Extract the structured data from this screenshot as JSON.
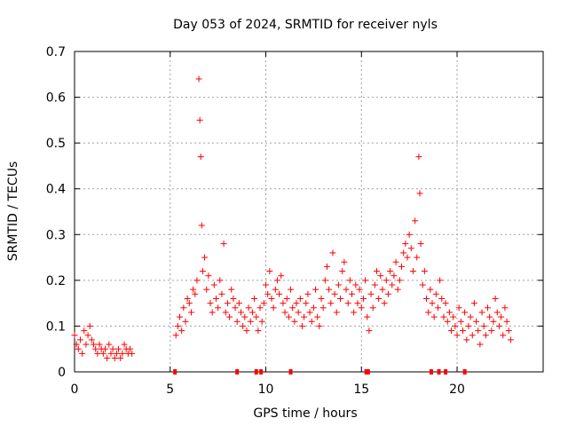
{
  "chart_data": {
    "type": "scatter",
    "title": "Day 053 of 2024, SRMTID for receiver nyls",
    "xlabel": "GPS time / hours",
    "ylabel": "SRMTID / TECUs",
    "xlim": [
      0,
      24.5
    ],
    "ylim": [
      0,
      0.7
    ],
    "xticks": [
      0,
      5,
      10,
      15,
      20
    ],
    "yticks": [
      0,
      0.1,
      0.2,
      0.3,
      0.4,
      0.5,
      0.6,
      0.7
    ],
    "xtick_labels": [
      "0",
      "5",
      "10",
      "15",
      "20"
    ],
    "ytick_labels": [
      "0",
      "0.1",
      "0.2",
      "0.3",
      "0.4",
      "0.5",
      "0.6",
      "0.7"
    ],
    "grid": true,
    "marker": "+",
    "color": "#ff0000",
    "series": [
      {
        "name": "SRMTID",
        "x": [
          0.0,
          0.1,
          0.2,
          0.3,
          0.4,
          0.5,
          0.6,
          0.7,
          0.8,
          0.9,
          1.0,
          1.1,
          1.2,
          1.3,
          1.4,
          1.5,
          1.6,
          1.7,
          1.8,
          1.9,
          2.0,
          2.1,
          2.2,
          2.3,
          2.4,
          2.5,
          2.6,
          2.7,
          2.8,
          2.9,
          3.0,
          5.3,
          5.4,
          5.5,
          5.6,
          5.7,
          5.8,
          5.9,
          6.0,
          6.1,
          6.2,
          6.3,
          6.4,
          6.5,
          6.55,
          6.6,
          6.65,
          6.7,
          6.8,
          6.9,
          7.0,
          7.1,
          7.2,
          7.3,
          7.4,
          7.5,
          7.6,
          7.7,
          7.8,
          7.9,
          8.0,
          8.1,
          8.2,
          8.3,
          8.4,
          8.5,
          8.6,
          8.7,
          8.8,
          8.9,
          9.0,
          9.1,
          9.2,
          9.3,
          9.4,
          9.5,
          9.6,
          9.7,
          9.8,
          9.9,
          10.0,
          10.1,
          10.2,
          10.3,
          10.4,
          10.5,
          10.6,
          10.7,
          10.8,
          10.9,
          11.0,
          11.1,
          11.2,
          11.3,
          11.4,
          11.5,
          11.6,
          11.7,
          11.8,
          11.9,
          12.0,
          12.1,
          12.2,
          12.3,
          12.4,
          12.5,
          12.6,
          12.7,
          12.8,
          12.9,
          13.0,
          13.1,
          13.2,
          13.3,
          13.4,
          13.5,
          13.6,
          13.7,
          13.8,
          13.9,
          14.0,
          14.1,
          14.2,
          14.3,
          14.4,
          14.5,
          14.6,
          14.7,
          14.8,
          14.9,
          15.0,
          15.1,
          15.2,
          15.3,
          15.4,
          15.5,
          15.6,
          15.7,
          15.8,
          15.9,
          16.0,
          16.1,
          16.2,
          16.3,
          16.4,
          16.5,
          16.6,
          16.7,
          16.8,
          16.9,
          17.0,
          17.1,
          17.2,
          17.3,
          17.4,
          17.5,
          17.6,
          17.7,
          17.8,
          17.9,
          18.0,
          18.05,
          18.1,
          18.2,
          18.3,
          18.4,
          18.5,
          18.6,
          18.7,
          18.8,
          18.9,
          19.0,
          19.1,
          19.2,
          19.3,
          19.4,
          19.5,
          19.6,
          19.7,
          19.8,
          19.9,
          20.0,
          20.1,
          20.2,
          20.3,
          20.4,
          20.5,
          20.6,
          20.7,
          20.8,
          20.9,
          21.0,
          21.1,
          21.2,
          21.3,
          21.4,
          21.5,
          21.6,
          21.7,
          21.8,
          21.9,
          22.0,
          22.1,
          22.2,
          22.3,
          22.4,
          22.5,
          22.6,
          22.7,
          22.8
        ],
        "y": [
          0.08,
          0.06,
          0.05,
          0.07,
          0.04,
          0.09,
          0.06,
          0.08,
          0.1,
          0.07,
          0.06,
          0.05,
          0.04,
          0.06,
          0.05,
          0.04,
          0.05,
          0.03,
          0.06,
          0.04,
          0.05,
          0.03,
          0.04,
          0.05,
          0.03,
          0.04,
          0.06,
          0.05,
          0.04,
          0.05,
          0.04,
          0.08,
          0.1,
          0.12,
          0.09,
          0.14,
          0.11,
          0.16,
          0.15,
          0.13,
          0.18,
          0.17,
          0.2,
          0.64,
          0.55,
          0.47,
          0.32,
          0.22,
          0.25,
          0.18,
          0.21,
          0.15,
          0.13,
          0.19,
          0.16,
          0.14,
          0.2,
          0.17,
          0.28,
          0.13,
          0.15,
          0.12,
          0.18,
          0.16,
          0.14,
          0.11,
          0.15,
          0.13,
          0.1,
          0.12,
          0.09,
          0.14,
          0.11,
          0.13,
          0.16,
          0.12,
          0.09,
          0.14,
          0.11,
          0.15,
          0.19,
          0.17,
          0.22,
          0.16,
          0.14,
          0.18,
          0.2,
          0.17,
          0.21,
          0.15,
          0.13,
          0.16,
          0.12,
          0.18,
          0.14,
          0.11,
          0.15,
          0.13,
          0.16,
          0.1,
          0.12,
          0.15,
          0.17,
          0.13,
          0.11,
          0.14,
          0.18,
          0.12,
          0.1,
          0.16,
          0.14,
          0.2,
          0.23,
          0.18,
          0.15,
          0.26,
          0.17,
          0.13,
          0.19,
          0.16,
          0.22,
          0.24,
          0.18,
          0.15,
          0.2,
          0.17,
          0.13,
          0.19,
          0.15,
          0.18,
          0.14,
          0.16,
          0.2,
          0.12,
          0.09,
          0.17,
          0.14,
          0.19,
          0.22,
          0.16,
          0.21,
          0.18,
          0.15,
          0.2,
          0.17,
          0.22,
          0.19,
          0.21,
          0.24,
          0.18,
          0.2,
          0.23,
          0.26,
          0.28,
          0.25,
          0.3,
          0.27,
          0.22,
          0.33,
          0.25,
          0.47,
          0.39,
          0.28,
          0.19,
          0.22,
          0.16,
          0.13,
          0.18,
          0.15,
          0.12,
          0.17,
          0.14,
          0.2,
          0.16,
          0.12,
          0.15,
          0.11,
          0.13,
          0.09,
          0.12,
          0.1,
          0.08,
          0.14,
          0.11,
          0.09,
          0.13,
          0.07,
          0.1,
          0.12,
          0.08,
          0.15,
          0.11,
          0.09,
          0.06,
          0.13,
          0.1,
          0.08,
          0.14,
          0.12,
          0.09,
          0.11,
          0.16,
          0.13,
          0.1,
          0.12,
          0.08,
          0.14,
          0.11,
          0.09,
          0.07
        ]
      }
    ],
    "zero_markers_x": [
      5.25,
      8.5,
      9.5,
      9.75,
      11.3,
      15.25,
      15.35,
      18.65,
      19.05,
      19.4,
      20.4
    ]
  }
}
